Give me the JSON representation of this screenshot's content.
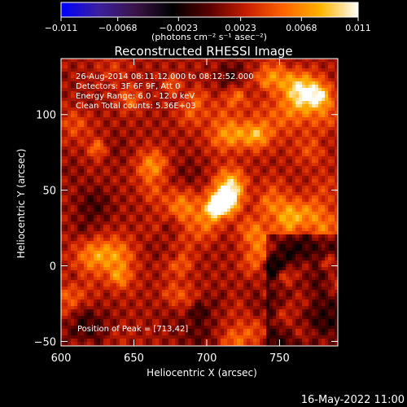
{
  "chart_data": {
    "type": "heatmap",
    "title": "Reconstructed RHESSI Image",
    "xlabel": "Heliocentric X (arcsec)",
    "ylabel": "Heliocentric Y (arcsec)",
    "xlim": [
      600,
      790
    ],
    "ylim": [
      -53,
      137
    ],
    "x_ticks": [
      600,
      650,
      700,
      750
    ],
    "y_ticks": [
      -50,
      0,
      50,
      100
    ],
    "colorbar": {
      "range": [
        -0.011,
        0.011
      ],
      "tick_values": [
        -0.011,
        -0.0068,
        -0.0023,
        0.0023,
        0.0068,
        0.011
      ],
      "tick_labels": [
        "-0.011",
        "-0.0068",
        "-0.0023",
        "0.0023",
        "0.0068",
        "0.011"
      ],
      "unit_label": "(photons cm⁻² s⁻¹ asec⁻²)"
    },
    "annotations": [
      "26-Aug-2014 08:11:12.000 to 08:12:52.000",
      "Detectors: 3F 6F 9F, Att 0",
      "Energy Range: 6.0 - 12.0 keV",
      "Clean     Total counts: 5.36E+03"
    ],
    "peak_label": "Position of Peak = [713,42]",
    "peak": {
      "x": 713,
      "y": 42
    },
    "grid": false
  },
  "footer_date": "16-May-2022 11:00",
  "colors": {
    "background": "#000000",
    "axis": "#ffffff",
    "colormap": [
      "#0000ff",
      "#3a1fa0",
      "#3a1448",
      "#000000",
      "#5a0000",
      "#c81e00",
      "#ff6400",
      "#ffb400",
      "#ffffff"
    ]
  }
}
